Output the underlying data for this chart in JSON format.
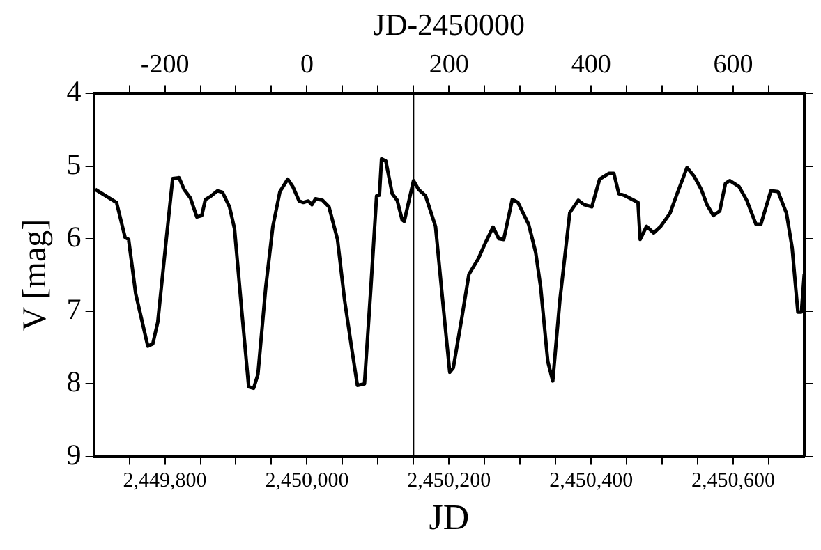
{
  "chart_data": {
    "type": "line",
    "xlabel": "JD",
    "x2label": "JD-2450000",
    "ylabel": "V [mag]",
    "xlim": [
      2449700,
      2450700
    ],
    "xticks": [
      {
        "value": 2449750,
        "label": null
      },
      {
        "value": 2449800,
        "label": "2,449,800"
      },
      {
        "value": 2449850,
        "label": null
      },
      {
        "value": 2449900,
        "label": null
      },
      {
        "value": 2449950,
        "label": null
      },
      {
        "value": 2450000,
        "label": "2,450,000"
      },
      {
        "value": 2450050,
        "label": null
      },
      {
        "value": 2450100,
        "label": null
      },
      {
        "value": 2450150,
        "label": null
      },
      {
        "value": 2450200,
        "label": "2,450,200"
      },
      {
        "value": 2450250,
        "label": null
      },
      {
        "value": 2450300,
        "label": null
      },
      {
        "value": 2450350,
        "label": null
      },
      {
        "value": 2450400,
        "label": "2,450,400"
      },
      {
        "value": 2450450,
        "label": null
      },
      {
        "value": 2450500,
        "label": null
      },
      {
        "value": 2450550,
        "label": null
      },
      {
        "value": 2450600,
        "label": "2,450,600"
      },
      {
        "value": 2450650,
        "label": null
      }
    ],
    "x2lim": [
      -300,
      700
    ],
    "x2ticks": [
      {
        "value": -250,
        "label": null
      },
      -200,
      {
        "value": -150,
        "label": null
      },
      {
        "value": -100,
        "label": null
      },
      {
        "value": -50,
        "label": null
      },
      0,
      {
        "value": 50,
        "label": null
      },
      {
        "value": 100,
        "label": null
      },
      {
        "value": 150,
        "label": null
      },
      200,
      {
        "value": 250,
        "label": null
      },
      {
        "value": 300,
        "label": null
      },
      {
        "value": 350,
        "label": null
      },
      400,
      {
        "value": 450,
        "label": null
      },
      {
        "value": 500,
        "label": null
      },
      {
        "value": 550,
        "label": null
      },
      600,
      {
        "value": 650,
        "label": null
      }
    ],
    "ylim": [
      9,
      4
    ],
    "yticks": [
      4,
      5,
      6,
      7,
      8,
      9
    ],
    "grid": false,
    "legend": false,
    "marker": "none",
    "line_style": "solid",
    "ref_lines": [
      {
        "axis": "x",
        "value": 2450150,
        "color": "#000000"
      }
    ],
    "series": [
      {
        "color": "#000000",
        "x": [
          2449702,
          2449732,
          2449744,
          2449749,
          2449759,
          2449776,
          2449783,
          2449790,
          2449802,
          2449811,
          2449820,
          2449827,
          2449836,
          2449845,
          2449852,
          2449857,
          2449864,
          2449874,
          2449881,
          2449891,
          2449898,
          2449908,
          2449918,
          2449925,
          2449931,
          2449942,
          2449952,
          2449962,
          2449973,
          2449980,
          2449989,
          2449995,
          2450002,
          2450007,
          2450012,
          2450022,
          2450031,
          2450043,
          2450053,
          2450063,
          2450071,
          2450081,
          2450090,
          2450098,
          2450102,
          2450105,
          2450111,
          2450120,
          2450127,
          2450134,
          2450137,
          2450150,
          2450157,
          2450167,
          2450181,
          2450194,
          2450201,
          2450206,
          2450218,
          2450228,
          2450241,
          2450252,
          2450262,
          2450270,
          2450277,
          2450289,
          2450297,
          2450312,
          2450322,
          2450329,
          2450339,
          2450346,
          2450356,
          2450370,
          2450382,
          2450390,
          2450401,
          2450412,
          2450425,
          2450432,
          2450439,
          2450446,
          2450466,
          2450469,
          2450478,
          2450488,
          2450498,
          2450511,
          2450521,
          2450535,
          2450545,
          2450555,
          2450563,
          2450572,
          2450581,
          2450589,
          2450595,
          2450608,
          2450619,
          2450632,
          2450639,
          2450653,
          2450663,
          2450675,
          2450683,
          2450691,
          2450696,
          2450700
        ],
        "values": [
          5.32,
          5.5,
          5.98,
          6.01,
          6.76,
          7.48,
          7.45,
          7.15,
          6.01,
          5.17,
          5.16,
          5.32,
          5.44,
          5.7,
          5.68,
          5.46,
          5.42,
          5.34,
          5.36,
          5.56,
          5.86,
          6.97,
          8.04,
          8.06,
          7.87,
          6.67,
          5.83,
          5.35,
          5.18,
          5.28,
          5.48,
          5.5,
          5.48,
          5.53,
          5.45,
          5.47,
          5.56,
          6.01,
          6.85,
          7.51,
          8.02,
          8.0,
          6.67,
          5.41,
          5.4,
          4.9,
          4.93,
          5.38,
          5.47,
          5.74,
          5.76,
          5.2,
          5.32,
          5.41,
          5.83,
          7.15,
          7.84,
          7.78,
          7.09,
          6.49,
          6.28,
          6.04,
          5.84,
          6.0,
          6.01,
          5.46,
          5.5,
          5.8,
          6.19,
          6.67,
          7.69,
          7.96,
          6.85,
          5.64,
          5.47,
          5.53,
          5.56,
          5.18,
          5.1,
          5.1,
          5.38,
          5.4,
          5.5,
          6.01,
          5.83,
          5.92,
          5.83,
          5.65,
          5.38,
          5.02,
          5.14,
          5.32,
          5.53,
          5.68,
          5.62,
          5.24,
          5.2,
          5.28,
          5.47,
          5.8,
          5.8,
          5.34,
          5.35,
          5.65,
          6.13,
          7.01,
          7.01,
          6.49
        ]
      }
    ]
  }
}
